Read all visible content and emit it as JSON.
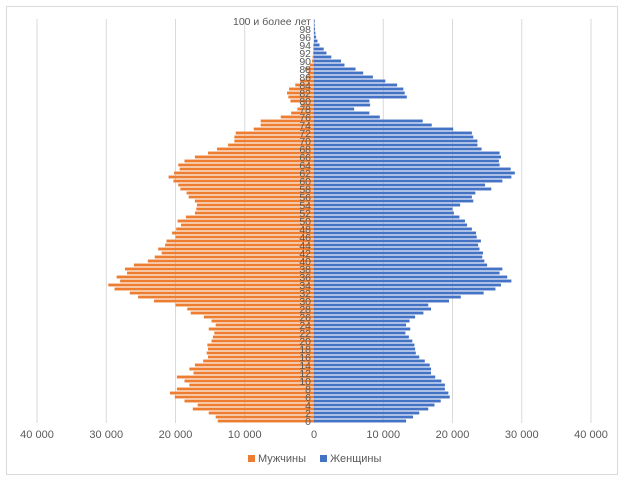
{
  "chart_data": {
    "type": "bar",
    "orientation": "horizontal-pyramid",
    "title": "",
    "xlabel": "",
    "ylabel": "",
    "xlim": [
      -40000,
      40000
    ],
    "x_ticks": [
      -40000,
      -30000,
      -20000,
      -10000,
      0,
      10000,
      20000,
      30000,
      40000
    ],
    "x_tick_labels": [
      "40 000",
      "30 000",
      "20 000",
      "10 000",
      "0",
      "10 000",
      "20 000",
      "30 000",
      "40 000"
    ],
    "grid": "vertical",
    "legend": "bottom",
    "categories": [
      "0",
      "1",
      "2",
      "3",
      "4",
      "5",
      "6",
      "7",
      "8",
      "9",
      "10",
      "11",
      "12",
      "13",
      "14",
      "15",
      "16",
      "17",
      "18",
      "19",
      "20",
      "21",
      "22",
      "23",
      "24",
      "25",
      "26",
      "27",
      "28",
      "29",
      "30",
      "31",
      "32",
      "33",
      "34",
      "35",
      "36",
      "37",
      "38",
      "39",
      "40",
      "41",
      "42",
      "43",
      "44",
      "45",
      "46",
      "47",
      "48",
      "49",
      "50",
      "51",
      "52",
      "53",
      "54",
      "55",
      "56",
      "57",
      "58",
      "59",
      "60",
      "61",
      "62",
      "63",
      "64",
      "65",
      "66",
      "67",
      "68",
      "69",
      "70",
      "71",
      "72",
      "73",
      "74",
      "75",
      "76",
      "77",
      "78",
      "79",
      "80",
      "81",
      "82",
      "83",
      "84",
      "85",
      "86",
      "87",
      "88",
      "89",
      "90",
      "91",
      "92",
      "93",
      "94",
      "95",
      "96",
      "97",
      "98",
      "99",
      "100 и более лет"
    ],
    "category_labels": [
      "0",
      "",
      "2",
      "",
      "4",
      "",
      "6",
      "",
      "8",
      "",
      "10",
      "",
      "12",
      "",
      "14",
      "",
      "16",
      "",
      "18",
      "",
      "20",
      "",
      "22",
      "",
      "24",
      "",
      "26",
      "",
      "28",
      "",
      "30",
      "",
      "32",
      "",
      "34",
      "",
      "36",
      "",
      "38",
      "",
      "40",
      "",
      "42",
      "",
      "44",
      "",
      "46",
      "",
      "48",
      "",
      "50",
      "",
      "52",
      "",
      "54",
      "",
      "56",
      "",
      "58",
      "",
      "60",
      "",
      "62",
      "",
      "64",
      "",
      "66",
      "",
      "68",
      "",
      "70",
      "",
      "72",
      "",
      "74",
      "",
      "76",
      "",
      "78",
      "",
      "80",
      "",
      "82",
      "",
      "84",
      "",
      "86",
      "",
      "88",
      "",
      "90",
      "",
      "92",
      "",
      "94",
      "",
      "96",
      "",
      "98",
      "",
      "100 и более лет"
    ],
    "series": [
      {
        "name": "Мужчины",
        "color": "#ed7d31",
        "values": [
          13900,
          14200,
          15200,
          17500,
          16800,
          18700,
          20100,
          20800,
          19800,
          18000,
          18700,
          19800,
          17400,
          18000,
          17200,
          16000,
          15300,
          15500,
          15300,
          15400,
          14800,
          14600,
          14400,
          15200,
          14200,
          14800,
          15900,
          17800,
          18300,
          20000,
          23100,
          25400,
          26600,
          28800,
          29700,
          28000,
          28500,
          27000,
          27300,
          26000,
          24000,
          23000,
          22000,
          22500,
          21500,
          21300,
          20000,
          20500,
          19900,
          19200,
          19700,
          18500,
          17200,
          17000,
          16900,
          17200,
          18100,
          18400,
          19300,
          19600,
          20300,
          21000,
          20200,
          19400,
          19600,
          18700,
          17200,
          15300,
          14000,
          12400,
          11500,
          11500,
          11300,
          8700,
          7700,
          7700,
          4800,
          3300,
          2400,
          1900,
          3400,
          3700,
          3900,
          3600,
          2700,
          2000,
          1200,
          900,
          1300,
          600,
          300,
          200,
          150,
          100,
          100,
          0,
          0,
          0,
          0,
          0,
          0
        ]
      },
      {
        "name": "Женщины",
        "color": "#4472c4",
        "values": [
          13300,
          14300,
          15200,
          16500,
          17400,
          18300,
          19600,
          19400,
          18900,
          18900,
          18400,
          17500,
          16900,
          16900,
          16700,
          16000,
          15200,
          14700,
          14600,
          14500,
          14200,
          13700,
          13200,
          13900,
          13300,
          13800,
          14600,
          15800,
          16900,
          16500,
          19500,
          21200,
          24500,
          26200,
          27000,
          28500,
          27900,
          26800,
          27200,
          25000,
          24600,
          24300,
          24400,
          23900,
          23700,
          24100,
          23500,
          23400,
          22800,
          22100,
          21800,
          21000,
          20200,
          20000,
          21100,
          23000,
          22800,
          23300,
          25600,
          24700,
          27200,
          28500,
          29000,
          28400,
          26800,
          26700,
          27000,
          26800,
          24200,
          23600,
          23600,
          23000,
          22800,
          20100,
          17000,
          15700,
          9500,
          8000,
          5800,
          8100,
          8000,
          13400,
          13100,
          12900,
          12000,
          10300,
          8500,
          7100,
          6000,
          4400,
          3900,
          2500,
          1800,
          1400,
          800,
          500,
          300,
          200,
          150,
          100,
          100
        ]
      }
    ]
  }
}
